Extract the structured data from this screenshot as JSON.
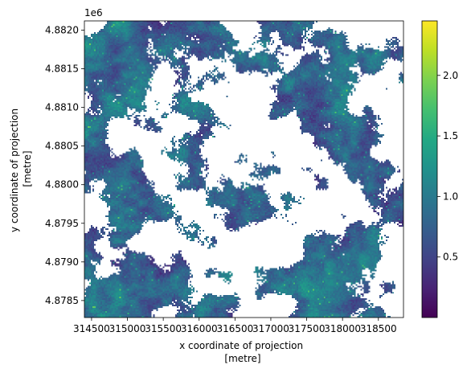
{
  "chart_data": {
    "type": "heatmap",
    "xlabel": "x coordinate of projection\n[metre]",
    "ylabel": "y coordinate of projection\n[metre]",
    "xlabel_lines": [
      "x coordinate of projection",
      "[metre]"
    ],
    "ylabel_lines": [
      "y coordinate of projection",
      "[metre]"
    ],
    "y_offset_label": "1e6",
    "xlim": [
      314400,
      318850
    ],
    "ylim": [
      4.87828,
      4.88212
    ],
    "x_ticks": [
      314500,
      315000,
      315500,
      316000,
      316500,
      317000,
      317500,
      318000,
      318500
    ],
    "x_tick_labels": [
      "314500",
      "315000",
      "315500",
      "316000",
      "316500",
      "317000",
      "317500",
      "318000",
      "318500"
    ],
    "y_ticks": [
      4.8785,
      4.879,
      4.8795,
      4.88,
      4.8805,
      4.881,
      4.8815,
      4.882
    ],
    "y_tick_labels": [
      "4.8785",
      "4.8790",
      "4.8795",
      "4.8800",
      "4.8805",
      "4.8810",
      "4.8815",
      "4.8820"
    ],
    "colorbar": {
      "colormap": "viridis",
      "range": [
        0.0,
        2.45
      ],
      "ticks": [
        0.5,
        1.0,
        1.5,
        2.0
      ],
      "tick_labels": [
        "0.5",
        "1.0",
        "1.5",
        "2.0"
      ]
    },
    "no_data_color": "#ffffff",
    "grid": false
  }
}
